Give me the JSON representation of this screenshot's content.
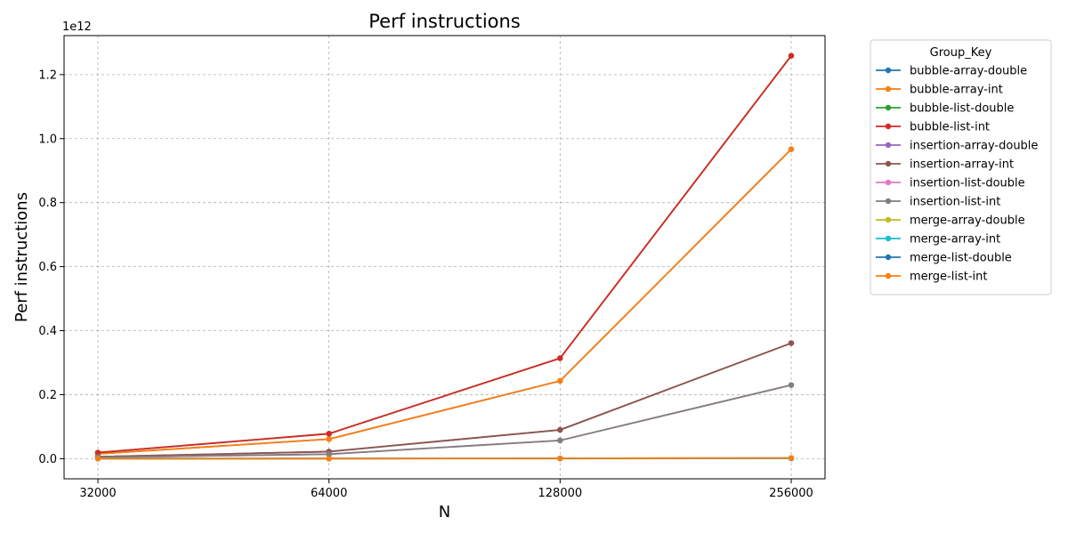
{
  "chart_data": {
    "type": "line",
    "title": "Perf instructions",
    "xlabel": "N",
    "ylabel": "Perf instructions",
    "y_exponent_label": "1e12",
    "y_scale_factor": 1000000000000,
    "x_scale": "log2",
    "x": [
      32000,
      64000,
      128000,
      256000
    ],
    "x_tick_labels": [
      "32000",
      "64000",
      "128000",
      "256000"
    ],
    "y_ticks": [
      0.0,
      0.2,
      0.4,
      0.6,
      0.8,
      1.0,
      1.2
    ],
    "y_tick_labels": [
      "0.0",
      "0.2",
      "0.4",
      "0.6",
      "0.8",
      "1.0",
      "1.2"
    ],
    "ylim": [
      -0.063,
      1.322
    ],
    "grid": true,
    "legend_title": "Group_Key",
    "legend_placement": "outside-right-top",
    "series": [
      {
        "name": "bubble-array-double",
        "color": "#1f77b4",
        "values": [
          0.015,
          0.061,
          0.243,
          0.967
        ]
      },
      {
        "name": "bubble-array-int",
        "color": "#ff7f0e",
        "values": [
          0.015,
          0.061,
          0.243,
          0.967
        ]
      },
      {
        "name": "bubble-list-double",
        "color": "#2ca02c",
        "values": [
          0.019,
          0.078,
          0.314,
          1.259
        ]
      },
      {
        "name": "bubble-list-int",
        "color": "#d62728",
        "values": [
          0.019,
          0.078,
          0.314,
          1.259
        ]
      },
      {
        "name": "insertion-array-double",
        "color": "#9467bd",
        "values": [
          0.006,
          0.022,
          0.09,
          0.361
        ]
      },
      {
        "name": "insertion-array-int",
        "color": "#8c564b",
        "values": [
          0.006,
          0.022,
          0.09,
          0.361
        ]
      },
      {
        "name": "insertion-list-double",
        "color": "#e377c2",
        "values": [
          0.004,
          0.014,
          0.057,
          0.23
        ]
      },
      {
        "name": "insertion-list-int",
        "color": "#7f7f7f",
        "values": [
          0.004,
          0.014,
          0.057,
          0.23
        ]
      },
      {
        "name": "merge-array-double",
        "color": "#bcbd22",
        "values": [
          0.0001,
          0.0002,
          0.0004,
          0.0008
        ]
      },
      {
        "name": "merge-array-int",
        "color": "#17becf",
        "values": [
          0.0001,
          0.0002,
          0.0004,
          0.0008
        ]
      },
      {
        "name": "merge-list-double",
        "color": "#1f77b4",
        "values": [
          0.0002,
          0.0004,
          0.0009,
          0.002
        ]
      },
      {
        "name": "merge-list-int",
        "color": "#ff7f0e",
        "values": [
          0.0002,
          0.0004,
          0.0009,
          0.002
        ]
      }
    ]
  }
}
